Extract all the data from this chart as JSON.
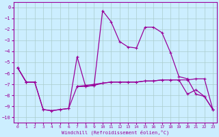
{
  "xlabel": "Windchill (Refroidissement éolien,°C)",
  "x": [
    0,
    1,
    2,
    3,
    4,
    5,
    6,
    7,
    8,
    9,
    10,
    11,
    12,
    13,
    14,
    15,
    16,
    17,
    18,
    19,
    20,
    21,
    22,
    23
  ],
  "line_wave": [
    -5.5,
    -6.8,
    -6.8,
    -9.3,
    -9.4,
    -9.3,
    -9.2,
    -4.5,
    -7.2,
    -7.1,
    -0.3,
    -1.3,
    -3.1,
    -3.6,
    -3.7,
    -1.8,
    -1.8,
    -2.3,
    -4.1,
    -6.3,
    -6.5,
    -7.9,
    -8.1,
    -9.3
  ],
  "line_mid": [
    -5.5,
    -6.8,
    -6.8,
    -9.3,
    -9.4,
    -9.3,
    -9.2,
    -7.2,
    -7.2,
    -7.1,
    -6.9,
    -6.8,
    -6.8,
    -6.8,
    -6.8,
    -6.7,
    -6.7,
    -6.6,
    -6.6,
    -6.6,
    -7.9,
    -7.5,
    -8.1,
    -9.3
  ],
  "line_flat": [
    -5.5,
    -6.8,
    -6.8,
    null,
    null,
    null,
    null,
    -7.2,
    -7.1,
    -7.0,
    -6.9,
    -6.8,
    -6.8,
    -6.8,
    -6.8,
    -6.7,
    -6.7,
    -6.6,
    -6.6,
    -6.6,
    -6.6,
    -6.5,
    -6.5,
    -9.3
  ],
  "line_color": "#990099",
  "bg_color": "#cceeff",
  "grid_color": "#aacccc",
  "ylim": [
    -10.5,
    0.5
  ],
  "xlim": [
    -0.5,
    23.5
  ],
  "yticks": [
    0,
    -1,
    -2,
    -3,
    -4,
    -5,
    -6,
    -7,
    -8,
    -9,
    -10
  ],
  "xticks": [
    0,
    1,
    2,
    3,
    4,
    5,
    6,
    7,
    8,
    9,
    10,
    11,
    12,
    13,
    14,
    15,
    16,
    17,
    18,
    19,
    20,
    21,
    22,
    23
  ],
  "marker_size": 3,
  "lw": 0.9
}
